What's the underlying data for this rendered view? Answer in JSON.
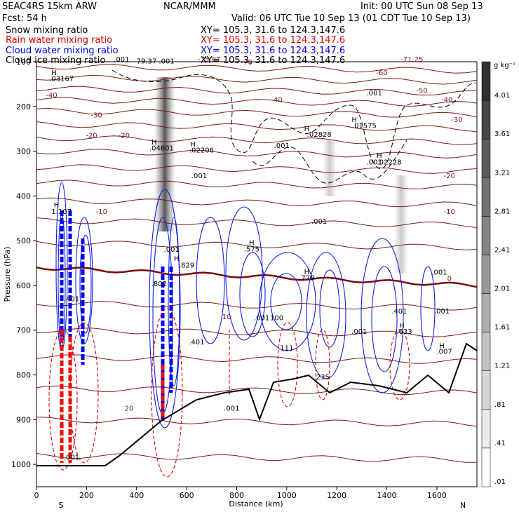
{
  "header": {
    "left1": "SEAC4RS 15km ARW",
    "left2": "Fcst:   54 h",
    "center": "NCAR/MMM",
    "init": "Init: 00 UTC Sun 08 Sep 13",
    "valid": "Valid: 06 UTC Tue 10 Sep 13 (01 CDT Tue 10 Sep 13)",
    "legend": [
      {
        "label": "Snow mixing ratio",
        "xy": "XY= 105.3, 31.6 to 124.3,147.6",
        "color": "#000000"
      },
      {
        "label": "Rain water mixing ratio",
        "xy": "XY= 105.3, 31.6 to 124.3,147.6",
        "color": "#e00000"
      },
      {
        "label": "Cloud water mixing ratio",
        "xy": "XY= 105.3, 31.6 to 124.3,147.6",
        "color": "#0000e0"
      },
      {
        "label": "Cloud ice mixing ratio",
        "xy": "XY= 105.3, 31.6 to 124.3,147.6",
        "color": "#000000"
      }
    ]
  },
  "chart_data": {
    "type": "cross-section",
    "xlabel": "Distance (km)",
    "ylabel": "Pressure (hPa)",
    "xlim": [
      0,
      1760
    ],
    "ylim": [
      1050,
      100
    ],
    "x_ticks": [
      0,
      200,
      400,
      600,
      800,
      1000,
      1200,
      1400,
      1600
    ],
    "y_ticks": [
      100,
      200,
      300,
      400,
      500,
      600,
      700,
      800,
      900,
      1000
    ],
    "left_end_label": "S",
    "right_end_label": "N",
    "colorbar": {
      "unit": "g kg⁻¹",
      "labels": [
        "4.01",
        "3.61",
        "3.21",
        "2.81",
        "2.41",
        "2.01",
        "1.61",
        "1.21",
        ".81",
        ".41",
        ".01"
      ]
    },
    "temperature_isotherms": [
      {
        "label": "-75.07",
        "km": 690,
        "p": 100
      },
      {
        "label": "-70",
        "km": 840,
        "p": 106
      },
      {
        "label": "-71.25",
        "km": 1500,
        "p": 100
      },
      {
        "label": "-60",
        "km": 1380,
        "p": 130
      },
      {
        "label": "-50",
        "km": 1540,
        "p": 170
      },
      {
        "label": "-40",
        "km": 60,
        "p": 180
      },
      {
        "label": "-40",
        "km": 960,
        "p": 190
      },
      {
        "label": "-40",
        "km": 1640,
        "p": 190
      },
      {
        "label": "-30",
        "km": 240,
        "p": 225
      },
      {
        "label": "-30",
        "km": 1680,
        "p": 235
      },
      {
        "label": "-20",
        "km": 220,
        "p": 270
      },
      {
        "label": "-20",
        "km": 350,
        "p": 270
      },
      {
        "label": "-20",
        "km": 1650,
        "p": 360
      },
      {
        "label": "-10",
        "km": 260,
        "p": 440
      },
      {
        "label": "-10",
        "km": 1650,
        "p": 440
      },
      {
        "label": "0",
        "km": 1650,
        "p": 590
      },
      {
        "label": "10",
        "km": 760,
        "p": 675
      },
      {
        "label": "20",
        "km": 370,
        "p": 880
      }
    ],
    "maxima_labels": [
      {
        "label": "H",
        "km": 70,
        "p": 130
      },
      {
        "label": ".03167",
        "km": 100,
        "p": 143
      },
      {
        "label": ".001",
        "km": 340,
        "p": 100
      },
      {
        "label": "79.37",
        "km": 440,
        "p": 104
      },
      {
        "label": ".001",
        "km": 520,
        "p": 104
      },
      {
        "label": ".001",
        "km": 1350,
        "p": 175
      },
      {
        "label": "H",
        "km": 470,
        "p": 285
      },
      {
        "label": ".04601",
        "km": 500,
        "p": 298
      },
      {
        "label": "H",
        "km": 625,
        "p": 290
      },
      {
        "label": ".02206",
        "km": 660,
        "p": 303
      },
      {
        "label": ".001",
        "km": 650,
        "p": 360
      },
      {
        "label": "H",
        "km": 1080,
        "p": 255
      },
      {
        "label": ".02828",
        "km": 1130,
        "p": 268
      },
      {
        "label": "H",
        "km": 1270,
        "p": 235
      },
      {
        "label": ".01575",
        "km": 1310,
        "p": 248
      },
      {
        "label": ".001",
        "km": 980,
        "p": 293
      },
      {
        "label": ".001",
        "km": 1350,
        "p": 330
      },
      {
        "label": "H",
        "km": 1370,
        "p": 315
      },
      {
        "label": ".02228",
        "km": 1410,
        "p": 330
      },
      {
        "label": "H",
        "km": 80,
        "p": 425
      },
      {
        "label": "1.107",
        "km": 100,
        "p": 440
      },
      {
        "label": ".001",
        "km": 540,
        "p": 525
      },
      {
        "label": "H",
        "km": 560,
        "p": 545
      },
      {
        "label": ".829",
        "km": 600,
        "p": 560
      },
      {
        "label": "H",
        "km": 860,
        "p": 510
      },
      {
        "label": ".575",
        "km": 860,
        "p": 524
      },
      {
        "label": "H",
        "km": 1080,
        "p": 575
      },
      {
        "label": ".729",
        "km": 1080,
        "p": 588
      },
      {
        "label": ".001",
        "km": 1130,
        "p": 462
      },
      {
        "label": ".001",
        "km": 1610,
        "p": 576
      },
      {
        "label": ".802",
        "km": 490,
        "p": 602
      },
      {
        "label": ".401",
        "km": 140,
        "p": 635
      },
      {
        "label": ".401",
        "km": 640,
        "p": 732
      },
      {
        "label": ".001",
        "km": 900,
        "p": 678
      },
      {
        "label": "100",
        "km": 960,
        "p": 678
      },
      {
        "label": ".001",
        "km": 1620,
        "p": 663
      },
      {
        "label": ".401",
        "km": 1450,
        "p": 663
      },
      {
        "label": ".001",
        "km": 1290,
        "p": 708
      },
      {
        "label": "H",
        "km": 1460,
        "p": 695
      },
      {
        "label": ".633",
        "km": 1470,
        "p": 708
      },
      {
        "label": "H",
        "km": 1620,
        "p": 740
      },
      {
        "label": ".007",
        "km": 1630,
        "p": 753
      },
      {
        "label": "111",
        "km": 1000,
        "p": 745
      },
      {
        "label": ".235",
        "km": 1140,
        "p": 810
      },
      {
        "label": ".001",
        "km": 780,
        "p": 880
      },
      {
        "label": ".001",
        "km": 140,
        "p": 990
      }
    ]
  }
}
